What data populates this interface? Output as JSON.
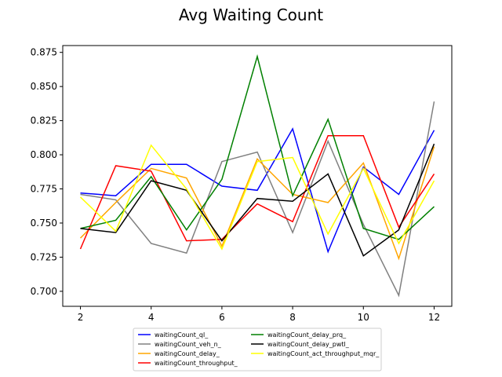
{
  "chart_data": {
    "type": "line",
    "title": "Avg Waiting Count",
    "xlabel": "",
    "ylabel": "",
    "x": [
      2,
      3,
      4,
      5,
      6,
      7,
      8,
      9,
      10,
      11,
      12
    ],
    "xlim": [
      1.5,
      12.5
    ],
    "ylim": [
      0.689,
      0.88
    ],
    "xticks": [
      2,
      4,
      6,
      8,
      10,
      12
    ],
    "yticks": [
      0.7,
      0.725,
      0.75,
      0.775,
      0.8,
      0.825,
      0.85,
      0.875
    ],
    "ytick_labels": [
      "0.700",
      "0.725",
      "0.750",
      "0.775",
      "0.800",
      "0.825",
      "0.850",
      "0.875"
    ],
    "grid": false,
    "legend": {
      "placement": "bottom-center",
      "columns": 2
    },
    "series": [
      {
        "name": "waitingCount_ql_",
        "color": "#0000ff",
        "values": [
          0.772,
          0.77,
          0.793,
          0.793,
          0.777,
          0.774,
          0.819,
          0.729,
          0.791,
          0.771,
          0.818
        ]
      },
      {
        "name": "waitingCount_veh_n_",
        "color": "#808080",
        "values": [
          0.771,
          0.767,
          0.735,
          0.728,
          0.795,
          0.802,
          0.743,
          0.81,
          0.749,
          0.697,
          0.839
        ]
      },
      {
        "name": "waitingCount_delay_",
        "color": "#ffa500",
        "values": [
          0.739,
          0.765,
          0.79,
          0.783,
          0.733,
          0.797,
          0.771,
          0.765,
          0.794,
          0.724,
          0.806
        ]
      },
      {
        "name": "waitingCount_throughput_",
        "color": "#ff0000",
        "values": [
          0.731,
          0.792,
          0.788,
          0.737,
          0.738,
          0.764,
          0.751,
          0.814,
          0.814,
          0.747,
          0.786
        ]
      },
      {
        "name": "waitingCount_delay_prq_",
        "color": "#008000",
        "values": [
          0.746,
          0.752,
          0.784,
          0.745,
          0.782,
          0.872,
          0.77,
          0.826,
          0.746,
          0.738,
          0.762
        ]
      },
      {
        "name": "waitingCount_delay_pwtl_",
        "color": "#000000",
        "values": [
          0.746,
          0.743,
          0.781,
          0.774,
          0.737,
          0.768,
          0.766,
          0.786,
          0.726,
          0.745,
          0.808
        ]
      },
      {
        "name": "waitingCount_act_throughput_mqr_",
        "color": "#ffff00",
        "values": [
          0.769,
          0.744,
          0.807,
          0.775,
          0.731,
          0.795,
          0.798,
          0.742,
          0.79,
          0.735,
          0.781
        ]
      }
    ]
  }
}
